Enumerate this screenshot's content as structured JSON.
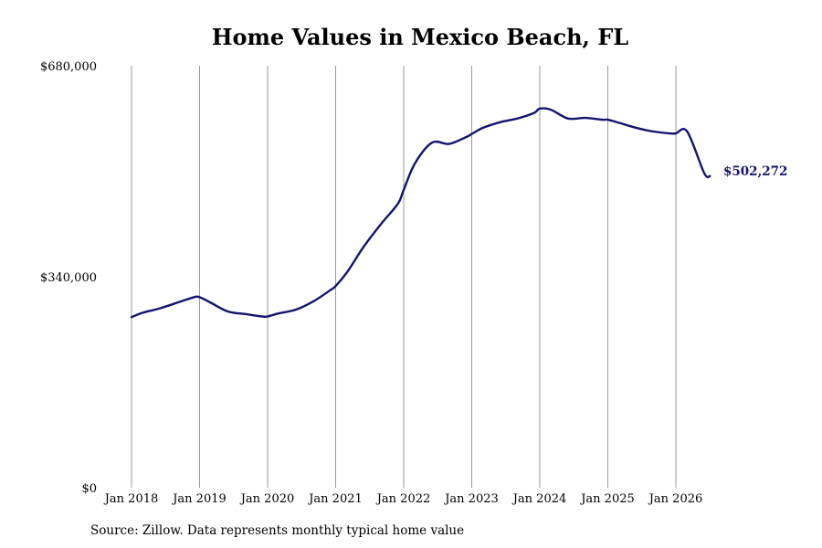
{
  "colors": {
    "line": "#14146e",
    "grid": "#9a9a9a",
    "end_label": "#14146e"
  },
  "source_note": "Source: Zillow. Data represents monthly typical home value",
  "chart_data": {
    "type": "line",
    "title": "Home Values in Mexico Beach, FL",
    "xlabel": "",
    "ylabel": "",
    "grid": {
      "vertical": true,
      "horizontal": false
    },
    "ylim": [
      0,
      680000
    ],
    "yticks": [
      0,
      340000,
      680000
    ],
    "ytick_labels": [
      "$0",
      "$340,000",
      "$680,000"
    ],
    "xlim": [
      "2018-01",
      "2026-07"
    ],
    "xticks": [
      "2018-01",
      "2019-01",
      "2020-01",
      "2021-01",
      "2022-01",
      "2023-01",
      "2024-01",
      "2025-01",
      "2026-01"
    ],
    "xtick_labels": [
      "Jan 2018",
      "Jan 2019",
      "Jan 2020",
      "Jan 2021",
      "Jan 2022",
      "Jan 2023",
      "Jan 2024",
      "Jan 2025",
      "Jan 2026"
    ],
    "end_label": "$502,272",
    "x": [
      "2018-01",
      "2018-03",
      "2018-06",
      "2018-09",
      "2018-12",
      "2019-01",
      "2019-03",
      "2019-06",
      "2019-09",
      "2019-12",
      "2020-01",
      "2020-03",
      "2020-06",
      "2020-09",
      "2020-12",
      "2021-01",
      "2021-03",
      "2021-06",
      "2021-09",
      "2021-12",
      "2022-01",
      "2022-03",
      "2022-06",
      "2022-09",
      "2022-12",
      "2023-01",
      "2023-03",
      "2023-06",
      "2023-09",
      "2023-12",
      "2024-01",
      "2024-03",
      "2024-06",
      "2024-09",
      "2024-12",
      "2025-01",
      "2025-03",
      "2025-06",
      "2025-09",
      "2025-12",
      "2026-01",
      "2026-03",
      "2026-06",
      "2026-07"
    ],
    "values": [
      275000,
      282000,
      289000,
      298000,
      307000,
      307000,
      298000,
      284000,
      280000,
      276000,
      276000,
      281000,
      287000,
      300000,
      318000,
      325000,
      347000,
      389000,
      425000,
      458000,
      480000,
      523000,
      556000,
      554000,
      565000,
      570000,
      580000,
      589000,
      595000,
      604000,
      611000,
      609000,
      595000,
      596000,
      593000,
      593000,
      588000,
      580000,
      574000,
      571000,
      571000,
      574000,
      507000,
      502272
    ]
  }
}
